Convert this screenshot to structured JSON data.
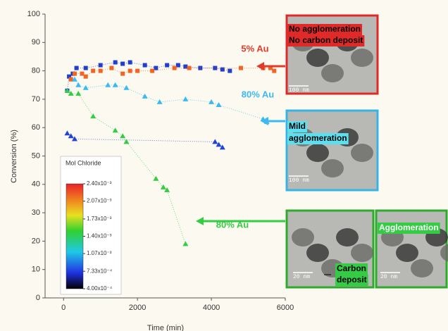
{
  "chart_data": {
    "type": "scatter",
    "x_label": "Time (min)",
    "y_label": "Conversion (%)",
    "xlim": [
      -500,
      6000
    ],
    "ylim": [
      0,
      100
    ],
    "xticks": [
      0,
      2000,
      4000,
      6000
    ],
    "yticks": [
      0,
      10,
      20,
      30,
      40,
      50,
      60,
      70,
      80,
      90,
      100
    ],
    "grid": false,
    "series": [
      {
        "marker": "square",
        "color": "#1f3fcc",
        "x": [
          100,
          150,
          250,
          350,
          600,
          1000,
          1400,
          1600,
          1800,
          2200,
          2500,
          2800,
          3100,
          3300,
          3700,
          4100,
          4300,
          4500
        ],
        "values": [
          73,
          78,
          79,
          81,
          81,
          82,
          83,
          82.5,
          83,
          82,
          81,
          82,
          82,
          81.5,
          81,
          81,
          80.5,
          80
        ]
      },
      {
        "marker": "square",
        "color": "#f06424",
        "x": [
          200,
          300,
          500,
          600,
          800,
          1000,
          1300,
          1600,
          1800,
          2000,
          2400,
          3000,
          3400,
          4800,
          5400,
          5600,
          5700
        ],
        "values": [
          77,
          79,
          79,
          78,
          80,
          80,
          81,
          79,
          80,
          80,
          80,
          81,
          81,
          81,
          81,
          81,
          80
        ]
      },
      {
        "marker": "triangle",
        "color": "#3cb9f0",
        "x": [
          300,
          400,
          600,
          1200,
          1400,
          1700,
          2200,
          2600,
          3300,
          4000,
          4200,
          5400,
          5500
        ],
        "values": [
          77,
          75,
          74,
          75,
          75,
          74,
          71,
          69,
          70,
          69,
          68,
          63,
          62
        ]
      },
      {
        "marker": "triangle",
        "color": "#33cc44",
        "x": [
          100,
          200,
          400,
          800,
          1400,
          1600,
          1700,
          2500,
          2700,
          2800,
          3300
        ],
        "values": [
          73,
          72,
          72,
          64,
          59,
          57,
          55,
          42,
          39,
          38,
          19
        ]
      },
      {
        "marker": "triangle",
        "color": "#2244d4",
        "x": [
          100,
          200,
          300,
          4100,
          4200,
          4300
        ],
        "values": [
          58,
          57,
          56,
          55,
          54,
          53
        ]
      }
    ],
    "colorbar": {
      "title": "Mol Chloride",
      "lim": [
        0.0004,
        0.0024
      ],
      "ticks": [
        {
          "value": 0.0024,
          "label": "2.40x10⁻³"
        },
        {
          "value": 0.00207,
          "label": "2.07x10⁻³"
        },
        {
          "value": 0.00173,
          "label": "1.73x10⁻³"
        },
        {
          "value": 0.0014,
          "label": "1.40x10⁻³"
        },
        {
          "value": 0.00107,
          "label": "1.07x10⁻³"
        },
        {
          "value": 0.000733,
          "label": "7.33x10⁻⁴"
        },
        {
          "value": 0.0004,
          "label": "4.00x10⁻⁴"
        }
      ]
    },
    "annotations": [
      {
        "text": "5% Au",
        "color": "#e03a2a"
      },
      {
        "text": "80% Au",
        "color": "#3cb9f0"
      },
      {
        "text": "80% Au",
        "color": "#33cc44"
      }
    ],
    "panels": [
      {
        "color": "#e02a2a",
        "labels": [
          "No agglomeration",
          "No carbon deposit"
        ],
        "scale": "100 nm"
      },
      {
        "color": "#36b4e6",
        "labels": [
          "Mild",
          "agglomeration"
        ],
        "scale": "100 nm"
      },
      {
        "color": "#2eaa2e",
        "labels": [
          "Carbon",
          "deposit"
        ],
        "scale": "20 nm"
      },
      {
        "color": "#2eaa2e",
        "labels": [
          "Agglomeration"
        ],
        "scale": "20 nm"
      }
    ]
  }
}
